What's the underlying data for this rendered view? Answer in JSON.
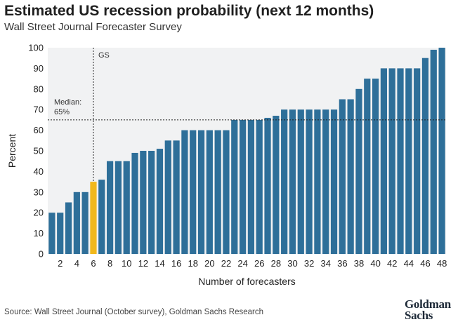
{
  "chart_data": {
    "type": "bar",
    "title": "Estimated US recession probability (next 12 months)",
    "subtitle": "Wall Street Journal Forecaster Survey",
    "xlabel": "Number of forecasters",
    "ylabel": "Percent",
    "ylim": [
      0,
      100
    ],
    "yticks": [
      0,
      10,
      20,
      30,
      40,
      50,
      60,
      70,
      80,
      90,
      100
    ],
    "xtick_labels": [
      "2",
      "4",
      "6",
      "8",
      "10",
      "12",
      "14",
      "16",
      "18",
      "20",
      "22",
      "24",
      "26",
      "28",
      "30",
      "32",
      "34",
      "36",
      "38",
      "40",
      "42",
      "44",
      "46",
      "48"
    ],
    "x": [
      1,
      2,
      3,
      4,
      5,
      6,
      7,
      8,
      9,
      10,
      11,
      12,
      13,
      14,
      15,
      16,
      17,
      18,
      19,
      20,
      21,
      22,
      23,
      24,
      25,
      26,
      27,
      28,
      29,
      30,
      31,
      32,
      33,
      34,
      35,
      36,
      37,
      38,
      39,
      40,
      41,
      42,
      43,
      44,
      45,
      46,
      47,
      48
    ],
    "values": [
      20,
      20,
      25,
      30,
      30,
      35,
      36,
      45,
      45,
      45,
      49,
      50,
      50,
      51,
      55,
      55,
      60,
      60,
      60,
      60,
      60,
      60,
      65,
      65,
      65,
      65,
      66,
      67,
      70,
      70,
      70,
      70,
      70,
      70,
      70,
      75,
      75,
      80,
      85,
      85,
      90,
      90,
      90,
      90,
      90,
      95,
      99,
      100
    ],
    "highlight_index": 5,
    "colors": {
      "bar": "#2e6f99",
      "highlight": "#f1b81c"
    },
    "grid": false,
    "annotations": {
      "gs_label": "GS",
      "gs_x": 6,
      "median_label_1": "Median:",
      "median_label_2": "65%",
      "median_value": 65
    }
  },
  "source": "Source: Wall Street Journal (October survey), Goldman Sachs Research",
  "logo": {
    "line1": "Goldman",
    "line2": "Sachs"
  }
}
